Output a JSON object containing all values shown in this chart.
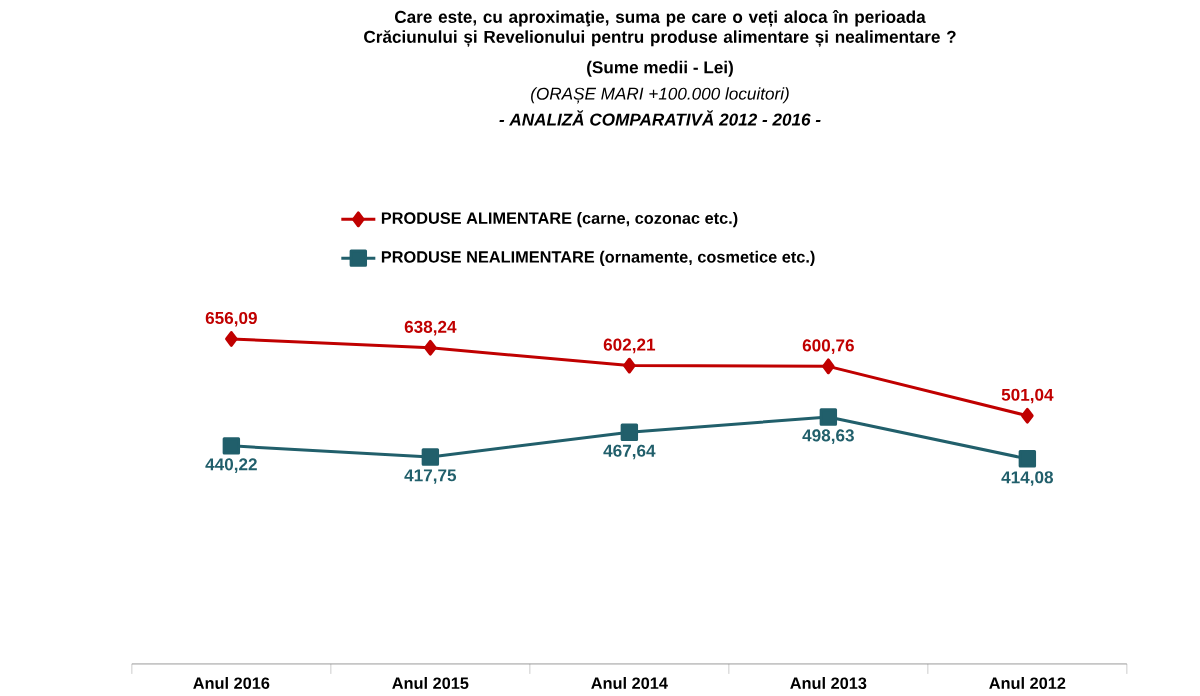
{
  "chart_data": {
    "type": "line",
    "title": "Care este, cu aproximaţie, suma pe care o veți aloca în perioada Crăciunului și Revelionului pentru produse alimentare și nealimentare ?",
    "subtitle": "(Sume medii - Lei)",
    "annotations": [
      "(ORAȘE MARI +100.000 locuitori)",
      "- ANALIZĂ COMPARATIVĂ 2012 - 2016 -"
    ],
    "categories": [
      "Anul 2016",
      "Anul 2015",
      "Anul 2014",
      "Anul 2013",
      "Anul 2012"
    ],
    "series": [
      {
        "name": "PRODUSE ALIMENTARE (carne, cozonac etc.)",
        "color": "#c00000",
        "marker": "diamond",
        "values": [
          656.09,
          638.24,
          602.21,
          600.76,
          501.04
        ],
        "value_labels": [
          "656,09",
          "638,24",
          "602,21",
          "600,76",
          "501,04"
        ]
      },
      {
        "name": "PRODUSE NEALIMENTARE (ornamente, cosmetice etc.)",
        "color": "#215f6b",
        "marker": "square",
        "values": [
          440.22,
          417.75,
          467.64,
          498.63,
          414.08
        ],
        "value_labels": [
          "440,22",
          "417,75",
          "467,64",
          "498,63",
          "414,08"
        ]
      }
    ],
    "grid": false,
    "legend": "top",
    "line_style": "solid",
    "tick_labels": "x"
  }
}
